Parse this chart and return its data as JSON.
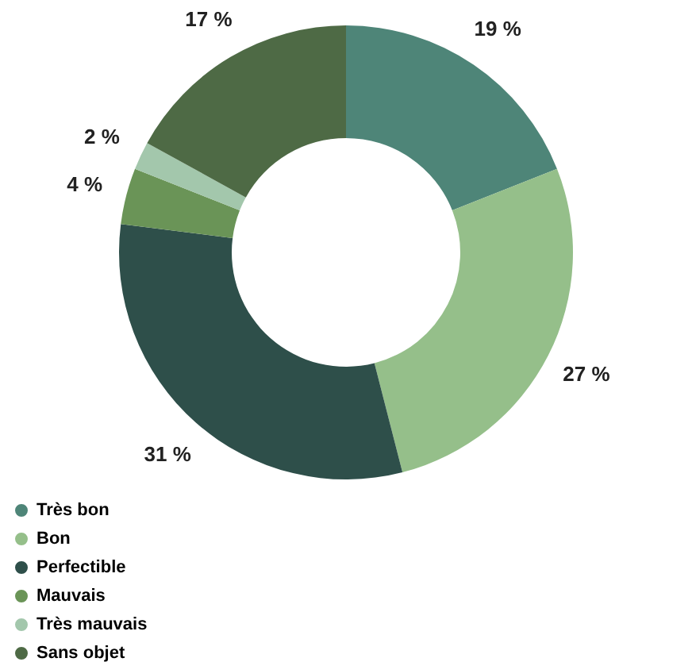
{
  "chart_data": {
    "type": "donut",
    "categories": [
      "Très bon",
      "Bon",
      "Perfectible",
      "Mauvais",
      "Très mauvais",
      "Sans objet"
    ],
    "values": [
      19,
      27,
      31,
      4,
      2,
      17
    ],
    "colors": [
      "#4e8578",
      "#95bf8a",
      "#2e4f4a",
      "#6a9457",
      "#a3c7ac",
      "#4e6a45"
    ],
    "value_labels": [
      "19 %",
      "27 %",
      "31 %",
      "4 %",
      "2 %",
      "17 %"
    ],
    "legend": "bottom left"
  }
}
